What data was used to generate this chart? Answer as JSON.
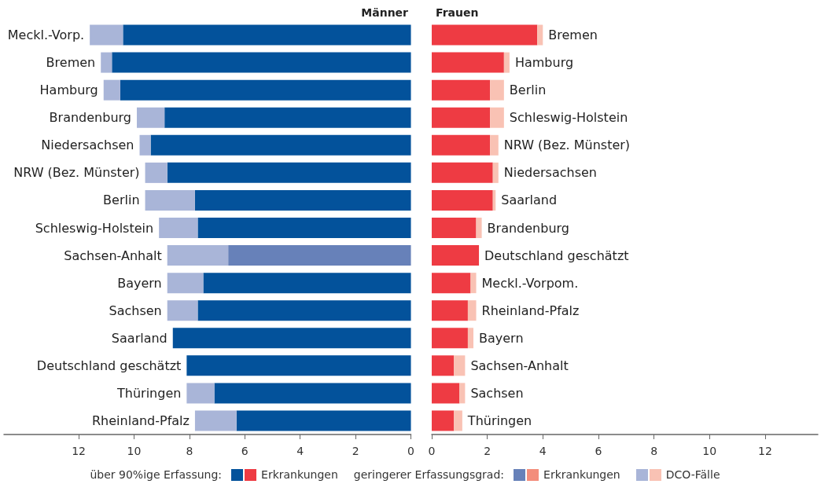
{
  "chart_data": [
    {
      "type": "bar",
      "title": "Männer",
      "orientation": "horizontal",
      "stacked": true,
      "categories": [
        "Meckl.-Vorp.",
        "Bremen",
        "Hamburg",
        "Brandenburg",
        "Niedersachsen",
        "NRW (Bez. Münster)",
        "Berlin",
        "Schleswig-Holstein",
        "Sachsen-Anhalt",
        "Bayern",
        "Sachsen",
        "Saarland",
        "Deutschland geschätzt",
        "Thüringen",
        "Rheinland-Pfalz"
      ],
      "series": [
        {
          "color": "#03529b",
          "values": [
            10.4,
            10.8,
            10.5,
            8.9,
            9.4,
            8.8,
            7.8,
            7.7,
            null,
            7.5,
            7.7,
            8.6,
            8.1,
            7.1,
            6.3
          ]
        },
        {
          "color": "#6781b9",
          "values": [
            null,
            null,
            null,
            null,
            null,
            null,
            null,
            null,
            6.6,
            null,
            null,
            null,
            null,
            null,
            null
          ]
        },
        {
          "color": "#a9b5d8",
          "values": [
            1.2,
            0.4,
            0.6,
            1.0,
            0.4,
            0.8,
            1.8,
            1.4,
            2.2,
            1.3,
            1.1,
            null,
            null,
            1.0,
            1.5
          ]
        }
      ],
      "xlim": [
        14.7,
        0
      ],
      "xticks": [
        12,
        10,
        8,
        6,
        4,
        2,
        0
      ],
      "annotations": [
        "über 90%ige Erfassung:",
        "geringerer Erfassungsgrad:"
      ]
    },
    {
      "type": "bar",
      "title": "Frauen",
      "orientation": "horizontal",
      "stacked": true,
      "legend": "bottom",
      "categories": [
        "Bremen",
        "Hamburg",
        "Berlin",
        "Schleswig-Holstein",
        "NRW (Bez. Münster)",
        "Niedersachsen",
        "Saarland",
        "Brandenburg",
        "Deutschland geschätzt",
        "Meckl.-Vorpom.",
        "Rheinland-Pfalz",
        "Bayern",
        "Sachsen-Anhalt",
        "Sachsen",
        "Thüringen"
      ],
      "series": [
        {
          "name": "Erkrankungen",
          "color": "#ee3b43",
          "values": [
            3.8,
            2.6,
            2.1,
            2.1,
            2.1,
            2.2,
            2.2,
            1.6,
            1.7,
            1.4,
            1.3,
            1.3,
            0.8,
            1.0,
            0.8
          ]
        },
        {
          "name": "Erkrankungen",
          "color": "#f38d7b",
          "values": [
            null,
            null,
            null,
            null,
            null,
            null,
            null,
            null,
            null,
            null,
            null,
            null,
            null,
            null,
            null
          ]
        },
        {
          "name": "DCO-Fälle",
          "color": "#f9c2b4",
          "values": [
            0.2,
            0.2,
            0.5,
            0.5,
            0.3,
            0.2,
            0.1,
            0.2,
            null,
            0.2,
            0.3,
            0.2,
            0.4,
            0.2,
            0.3
          ]
        }
      ],
      "xlim": [
        0,
        13.9
      ],
      "xticks": [
        0,
        2,
        4,
        6,
        8,
        10,
        12
      ]
    }
  ]
}
